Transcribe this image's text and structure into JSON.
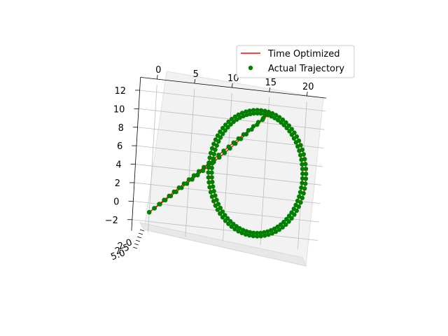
{
  "chart_data": {
    "type": "scatter",
    "projection": "3d",
    "legend": {
      "placement": "top-right",
      "entries": [
        {
          "label": "Time Optimized",
          "kind": "line",
          "color": "#ff0000"
        },
        {
          "label": "Actual Trajectory",
          "kind": "marker",
          "color": "#008000"
        }
      ]
    },
    "x_ticks": [
      "0",
      "5",
      "10",
      "15",
      "20"
    ],
    "y_ticks": [
      "−2",
      "0",
      "2",
      "4",
      "6",
      "8",
      "10",
      "12"
    ],
    "depth_tick_labels": [
      "2.0",
      "2.5",
      "5.0"
    ],
    "grid": true,
    "pane_color": "#f2f2f2",
    "series": [
      {
        "name": "Time Optimized",
        "style": "line",
        "color": "#ff0000"
      },
      {
        "name": "Actual Trajectory",
        "style": "markers",
        "color": "#008000"
      }
    ],
    "trajectory": {
      "start": {
        "x": 0,
        "y": -1
      },
      "peak": {
        "x": 15,
        "y": 11
      },
      "ellipse_center": {
        "x": 14,
        "y": 4.5
      },
      "ellipse_x_half_width": 6.5,
      "ellipse_y_half_height": 6.8,
      "bottom_point": {
        "x": 13,
        "y": -2
      },
      "x_range": [
        0,
        21
      ],
      "y_range": [
        -2,
        11
      ]
    }
  }
}
